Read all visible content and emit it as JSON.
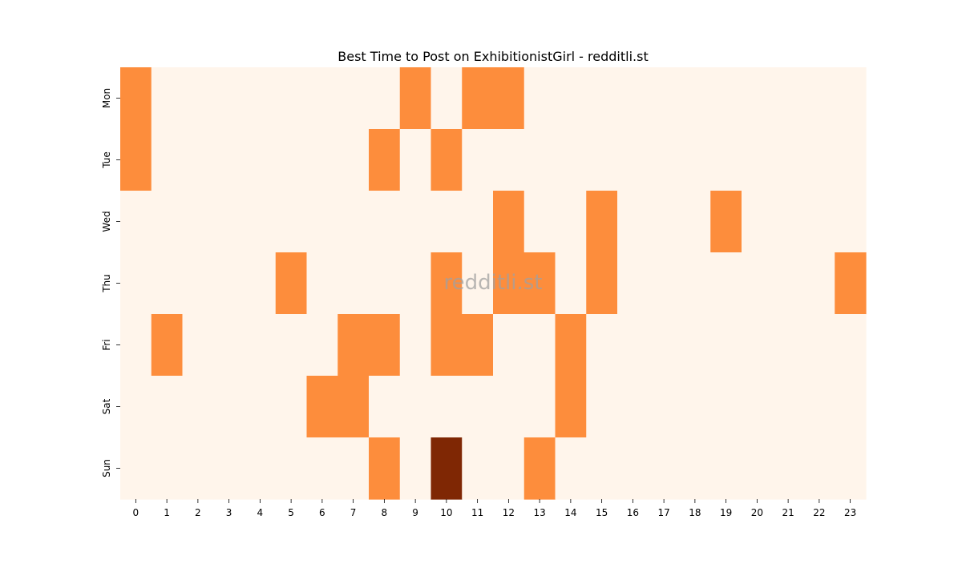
{
  "chart_data": {
    "type": "heatmap",
    "title": "Best Time to Post on ExhibitionistGirl - redditli.st",
    "watermark": "redditli.st",
    "xlabel": "",
    "ylabel": "",
    "x_categories": [
      "0",
      "1",
      "2",
      "3",
      "4",
      "5",
      "6",
      "7",
      "8",
      "9",
      "10",
      "11",
      "12",
      "13",
      "14",
      "15",
      "16",
      "17",
      "18",
      "19",
      "20",
      "21",
      "22",
      "23"
    ],
    "y_categories": [
      "Mon",
      "Tue",
      "Wed",
      "Thu",
      "Fri",
      "Sat",
      "Sun"
    ],
    "values": [
      [
        1,
        0,
        0,
        0,
        0,
        0,
        0,
        0,
        0,
        1,
        0,
        1,
        1,
        0,
        0,
        0,
        0,
        0,
        0,
        0,
        0,
        0,
        0,
        0
      ],
      [
        1,
        0,
        0,
        0,
        0,
        0,
        0,
        0,
        1,
        0,
        1,
        0,
        0,
        0,
        0,
        0,
        0,
        0,
        0,
        0,
        0,
        0,
        0,
        0
      ],
      [
        0,
        0,
        0,
        0,
        0,
        0,
        0,
        0,
        0,
        0,
        0,
        0,
        1,
        0,
        0,
        1,
        0,
        0,
        0,
        1,
        0,
        0,
        0,
        0
      ],
      [
        0,
        0,
        0,
        0,
        0,
        1,
        0,
        0,
        0,
        0,
        1,
        0,
        1,
        1,
        0,
        1,
        0,
        0,
        0,
        0,
        0,
        0,
        0,
        1
      ],
      [
        0,
        1,
        0,
        0,
        0,
        0,
        0,
        1,
        1,
        0,
        1,
        1,
        0,
        0,
        1,
        0,
        0,
        0,
        0,
        0,
        0,
        0,
        0,
        0
      ],
      [
        0,
        0,
        0,
        0,
        0,
        0,
        1,
        1,
        0,
        0,
        0,
        0,
        0,
        0,
        1,
        0,
        0,
        0,
        0,
        0,
        0,
        0,
        0,
        0
      ],
      [
        0,
        0,
        0,
        0,
        0,
        0,
        0,
        0,
        1,
        0,
        2,
        0,
        0,
        1,
        0,
        0,
        0,
        0,
        0,
        0,
        0,
        0,
        0,
        0
      ]
    ],
    "colors": [
      "#fff5eb",
      "#fd8d3c",
      "#7f2704"
    ],
    "colorbar": false
  }
}
